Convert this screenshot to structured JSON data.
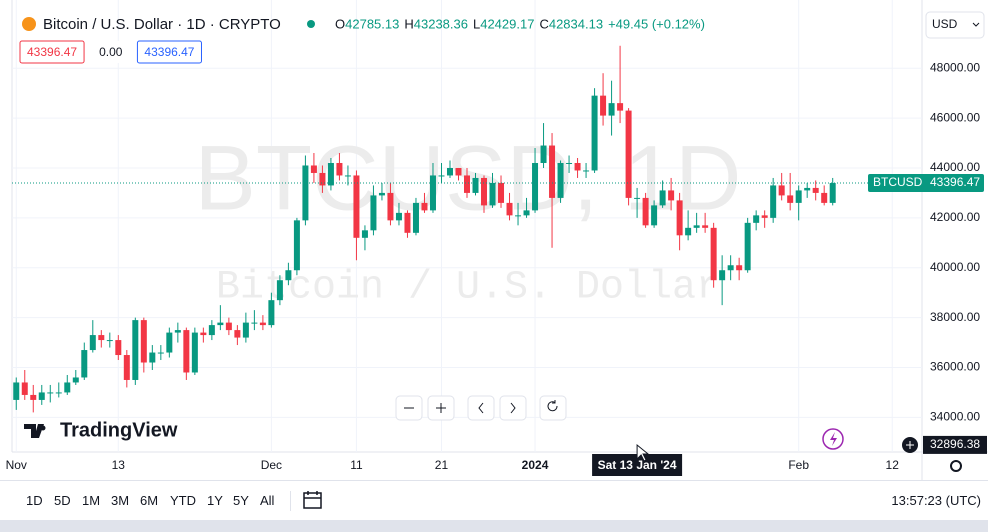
{
  "chart_data": {
    "type": "candlestick",
    "title": "Bitcoin / U.S. Dollar · 1D · CRYPTO",
    "ohlc": [
      {
        "label": "O",
        "value": 42785.13
      },
      {
        "label": "H",
        "value": 43238.36
      },
      {
        "label": "L",
        "value": 42429.17
      },
      {
        "label": "C",
        "value": 42834.13
      }
    ],
    "change": "+49.45 (+0.12%)",
    "indicator_values": [
      {
        "value": 43396.47,
        "color": "#f23645"
      },
      {
        "value": 0,
        "label": "0.00"
      },
      {
        "value": 43396.47,
        "color": "#2962ff"
      }
    ],
    "currency": "USD",
    "watermark": "BTCUSD, 1D",
    "watermark_subtitle": "Bitcoin / U.S. Dollar",
    "symbol": "BTCUSD",
    "up_color": "#089981",
    "down_color": "#f23645",
    "x": [
      0,
      1,
      2,
      3,
      4,
      5,
      6,
      7,
      8,
      9,
      10,
      11,
      12,
      13,
      14,
      15,
      16,
      17,
      18,
      19,
      20,
      21,
      22,
      23,
      24,
      25,
      26,
      27,
      28,
      29,
      30,
      31,
      32,
      33,
      34,
      35,
      36,
      37,
      38,
      39,
      40,
      41,
      42,
      43,
      44,
      45,
      46,
      47,
      48,
      49,
      50,
      51,
      52,
      53,
      54,
      55,
      56,
      57,
      58,
      59,
      60,
      61,
      62,
      63,
      64,
      65,
      66,
      67,
      68,
      69,
      70,
      71,
      72,
      73,
      74,
      75,
      76,
      77,
      78,
      79,
      80,
      81,
      82,
      83,
      84,
      85,
      86,
      87,
      88,
      89,
      90,
      91,
      92,
      93,
      94,
      95,
      96
    ],
    "open": [
      34700,
      35400,
      34900,
      34700,
      35000,
      35000,
      35000,
      35400,
      35600,
      36700,
      37300,
      37100,
      37100,
      36500,
      35500,
      37900,
      36200,
      36600,
      36600,
      37400,
      37500,
      35800,
      37400,
      37300,
      37700,
      37800,
      37500,
      37200,
      37800,
      37800,
      37700,
      38700,
      39500,
      39900,
      41900,
      44100,
      43800,
      43300,
      44200,
      43700,
      43700,
      41200,
      41500,
      42900,
      43000,
      41900,
      42200,
      41400,
      42600,
      42300,
      43700,
      43700,
      44000,
      43700,
      43000,
      43600,
      42500,
      43400,
      42600,
      42100,
      42100,
      42300,
      44200,
      44900,
      42800,
      44200,
      44200,
      43900,
      43900,
      46900,
      46100,
      46600,
      46300,
      42800,
      42800,
      41700,
      42500,
      43100,
      42700,
      41300,
      41600,
      41700,
      41600,
      39500,
      39900,
      40100,
      39900,
      41800,
      42100,
      42000,
      43300,
      42900,
      42600,
      43100,
      43200,
      43000,
      42600
    ],
    "high": [
      35600,
      35900,
      35300,
      35300,
      35300,
      35400,
      35700,
      35900,
      37000,
      37900,
      37500,
      37400,
      37300,
      36700,
      38000,
      38000,
      36900,
      36900,
      37600,
      37800,
      37600,
      37600,
      37600,
      37900,
      38500,
      38000,
      37700,
      38200,
      38300,
      38100,
      39000,
      39700,
      40200,
      42000,
      44500,
      44600,
      44100,
      44400,
      44600,
      44100,
      43900,
      41700,
      43300,
      43400,
      43400,
      42600,
      42300,
      42800,
      43000,
      44200,
      44200,
      44300,
      44000,
      44000,
      43800,
      43700,
      43800,
      43700,
      43000,
      42600,
      42800,
      44800,
      45800,
      45400,
      44300,
      44500,
      44400,
      44200,
      47200,
      47800,
      47500,
      48900,
      46400,
      43200,
      43000,
      42700,
      43500,
      43600,
      43000,
      42300,
      42200,
      42200,
      41800,
      40500,
      40500,
      40400,
      42000,
      42300,
      42300,
      43600,
      43800,
      43800,
      43300,
      43400,
      43500,
      43300,
      43600
    ],
    "low": [
      34300,
      34700,
      34200,
      34500,
      34600,
      34800,
      34900,
      35300,
      35500,
      36600,
      36800,
      36800,
      36300,
      35200,
      35300,
      35800,
      35900,
      36300,
      36400,
      37000,
      35500,
      35700,
      37000,
      37100,
      37500,
      37300,
      36900,
      37000,
      37500,
      37500,
      37600,
      38500,
      39300,
      39700,
      41700,
      43400,
      43000,
      43100,
      43500,
      43300,
      40300,
      40700,
      41300,
      42700,
      41700,
      41700,
      41200,
      41300,
      42200,
      42200,
      43400,
      43600,
      43500,
      42800,
      42900,
      42200,
      42400,
      42400,
      41900,
      41700,
      42000,
      42200,
      44000,
      40800,
      42600,
      43800,
      43600,
      43600,
      43800,
      45700,
      45300,
      45800,
      42500,
      42000,
      41600,
      41600,
      42400,
      42300,
      40700,
      41100,
      41400,
      41400,
      39200,
      38500,
      39500,
      39500,
      39800,
      41500,
      41600,
      41800,
      42700,
      42300,
      41900,
      42800,
      42700,
      42500,
      42500
    ],
    "close": [
      35400,
      34900,
      34700,
      35000,
      35000,
      35000,
      35400,
      35600,
      36700,
      37300,
      37100,
      37100,
      36500,
      35500,
      37900,
      36200,
      36600,
      36600,
      37400,
      37500,
      35800,
      37400,
      37300,
      37700,
      37800,
      37500,
      37200,
      37800,
      37800,
      37700,
      38700,
      39500,
      39900,
      41900,
      44100,
      43800,
      43300,
      44200,
      43700,
      43700,
      41200,
      41500,
      42900,
      43000,
      41900,
      42200,
      41400,
      42600,
      42300,
      43700,
      43700,
      44000,
      43700,
      43000,
      43600,
      42500,
      43400,
      42600,
      42100,
      42100,
      42300,
      44200,
      44900,
      42800,
      44200,
      44200,
      43900,
      43900,
      46900,
      46100,
      46600,
      46300,
      42800,
      42800,
      41700,
      42500,
      43100,
      42700,
      41300,
      41600,
      41700,
      41600,
      39500,
      39900,
      40100,
      39900,
      41800,
      42100,
      42000,
      43300,
      42900,
      42600,
      43100,
      43200,
      43000,
      42600,
      43396.47
    ],
    "xlim": [
      -0.5,
      106.5
    ],
    "xticks": [
      {
        "value": 0,
        "label": "Nov"
      },
      {
        "value": 12,
        "label": "13"
      },
      {
        "value": 30,
        "label": "Dec"
      },
      {
        "value": 40,
        "label": "11"
      },
      {
        "value": 50,
        "label": "21"
      },
      {
        "value": 61,
        "label": "2024"
      },
      {
        "value": 92,
        "label": "Feb"
      },
      {
        "value": 103,
        "label": "12"
      }
    ],
    "ylim": [
      32612,
      50735
    ],
    "yticks": [
      {
        "value": 34000,
        "label": "34000.00"
      },
      {
        "value": 36000,
        "label": "36000.00"
      },
      {
        "value": 38000,
        "label": "38000.00"
      },
      {
        "value": 40000,
        "label": "40000.00"
      },
      {
        "value": 42000,
        "label": "42000.00"
      },
      {
        "value": 44000,
        "label": "44000.00"
      },
      {
        "value": 46000,
        "label": "46000.00"
      },
      {
        "value": 48000,
        "label": "48000.00"
      }
    ],
    "grid": true,
    "crosshair": {
      "x": 73,
      "x_label": "Sat 13 Jan '24",
      "y": 32896.38
    }
  },
  "brand": "TradingView",
  "toolbar": {
    "ranges": [
      "1D",
      "5D",
      "1M",
      "3M",
      "6M",
      "YTD",
      "1Y",
      "5Y",
      "All"
    ],
    "clock": "13:57:23 (UTC)"
  }
}
